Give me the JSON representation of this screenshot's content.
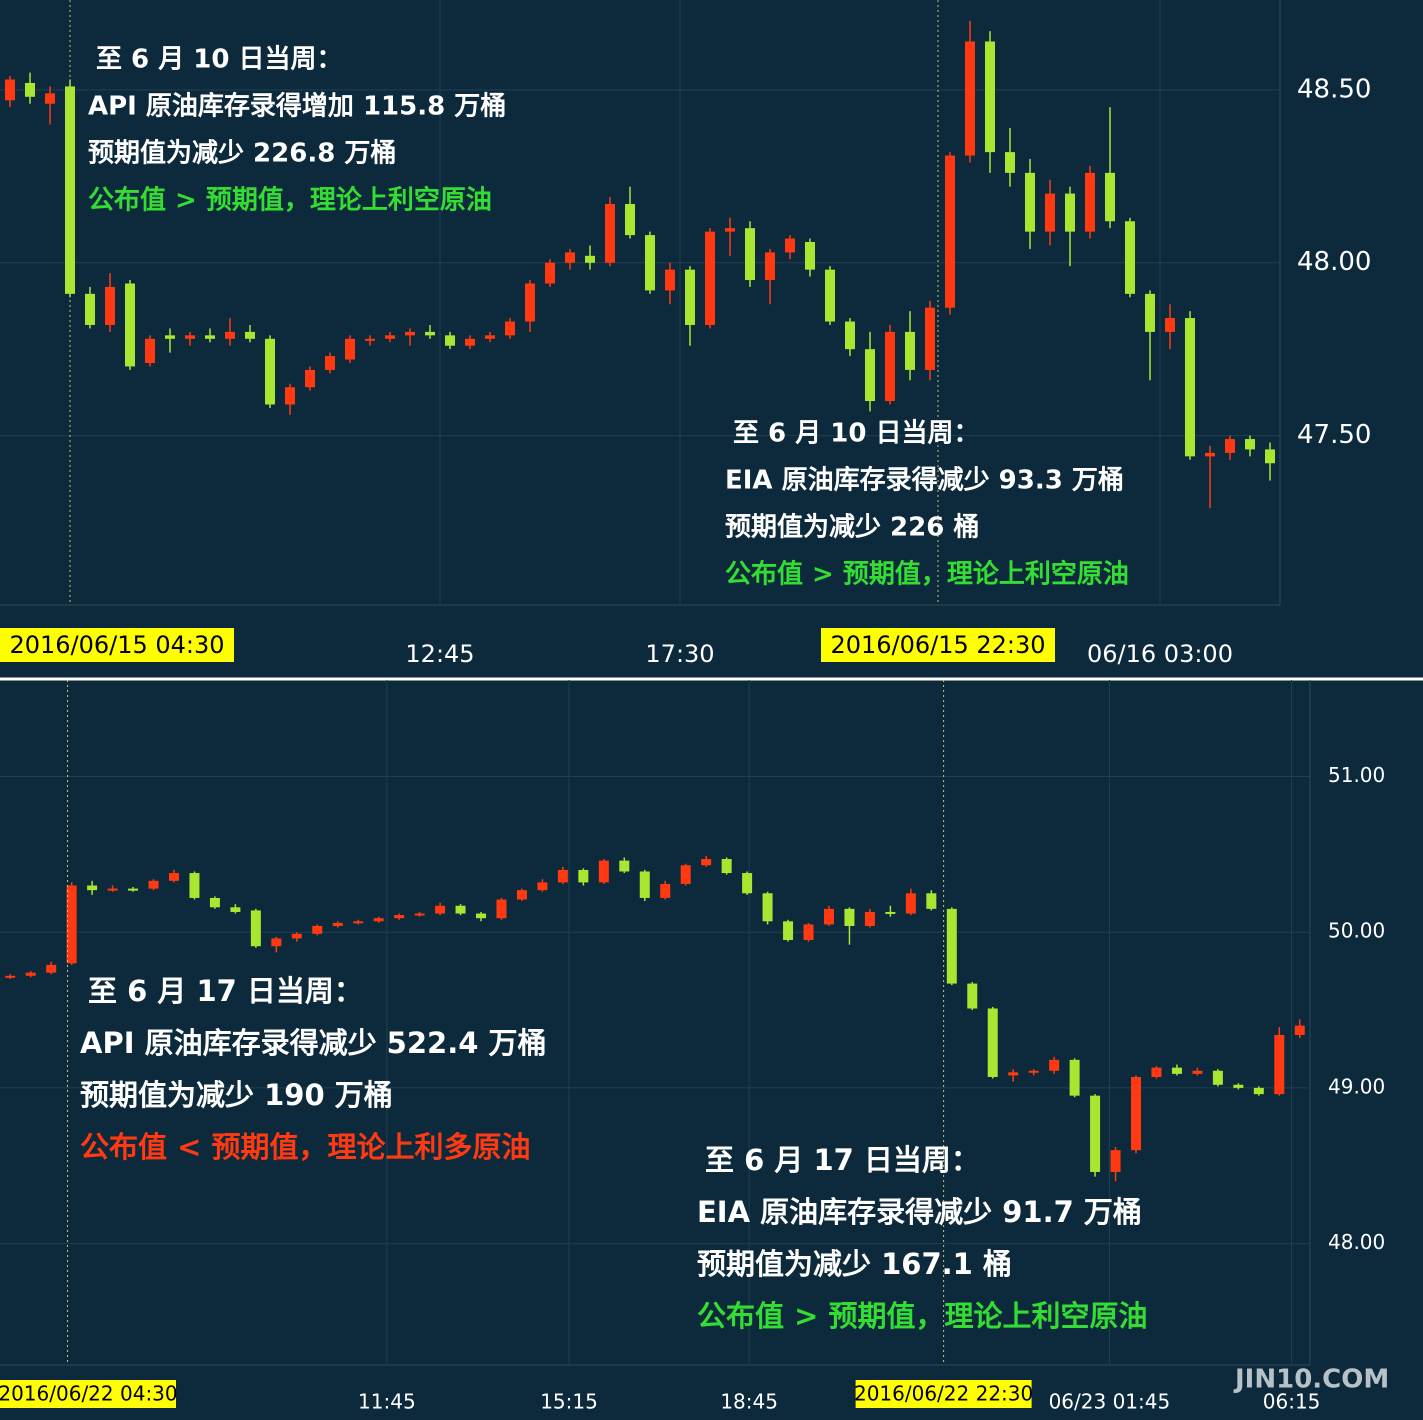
{
  "chart_data": [
    {
      "type": "candlestick",
      "ohlc": [
        [
          48.47,
          48.54,
          48.45,
          48.53
        ],
        [
          48.52,
          48.55,
          48.46,
          48.48
        ],
        [
          48.46,
          48.51,
          48.4,
          48.49
        ],
        [
          48.51,
          48.53,
          47.9,
          47.91
        ],
        [
          47.91,
          47.93,
          47.81,
          47.82
        ],
        [
          47.82,
          47.97,
          47.8,
          47.93
        ],
        [
          47.94,
          47.95,
          47.69,
          47.7
        ],
        [
          47.71,
          47.79,
          47.7,
          47.78
        ],
        [
          47.79,
          47.81,
          47.74,
          47.78
        ],
        [
          47.78,
          47.8,
          47.76,
          47.79
        ],
        [
          47.79,
          47.81,
          47.77,
          47.78
        ],
        [
          47.78,
          47.84,
          47.76,
          47.8
        ],
        [
          47.8,
          47.82,
          47.77,
          47.78
        ],
        [
          47.78,
          47.79,
          47.58,
          47.59
        ],
        [
          47.59,
          47.65,
          47.56,
          47.64
        ],
        [
          47.64,
          47.7,
          47.63,
          47.69
        ],
        [
          47.69,
          47.74,
          47.68,
          47.73
        ],
        [
          47.72,
          47.79,
          47.71,
          47.78
        ],
        [
          47.78,
          47.79,
          47.76,
          47.78
        ],
        [
          47.78,
          47.8,
          47.77,
          47.79
        ],
        [
          47.79,
          47.81,
          47.76,
          47.8
        ],
        [
          47.8,
          47.82,
          47.78,
          47.79
        ],
        [
          47.79,
          47.8,
          47.75,
          47.76
        ],
        [
          47.76,
          47.79,
          47.75,
          47.78
        ],
        [
          47.78,
          47.8,
          47.77,
          47.79
        ],
        [
          47.79,
          47.84,
          47.78,
          47.83
        ],
        [
          47.83,
          47.95,
          47.8,
          47.94
        ],
        [
          47.94,
          48.01,
          47.93,
          48.0
        ],
        [
          48.0,
          48.04,
          47.98,
          48.03
        ],
        [
          48.02,
          48.05,
          47.98,
          48.0
        ],
        [
          48.0,
          48.19,
          47.99,
          48.17
        ],
        [
          48.17,
          48.22,
          48.07,
          48.08
        ],
        [
          48.08,
          48.09,
          47.91,
          47.92
        ],
        [
          47.92,
          48.0,
          47.88,
          47.98
        ],
        [
          47.98,
          47.99,
          47.76,
          47.82
        ],
        [
          47.82,
          48.1,
          47.81,
          48.09
        ],
        [
          48.09,
          48.13,
          48.02,
          48.1
        ],
        [
          48.1,
          48.12,
          47.93,
          47.95
        ],
        [
          47.95,
          48.04,
          47.88,
          48.03
        ],
        [
          48.03,
          48.08,
          48.01,
          48.07
        ],
        [
          48.06,
          48.07,
          47.96,
          47.98
        ],
        [
          47.98,
          47.99,
          47.82,
          47.83
        ],
        [
          47.83,
          47.84,
          47.73,
          47.75
        ],
        [
          47.75,
          47.8,
          47.57,
          47.6
        ],
        [
          47.6,
          47.82,
          47.59,
          47.8
        ],
        [
          47.8,
          47.86,
          47.66,
          47.69
        ],
        [
          47.69,
          47.89,
          47.66,
          47.87
        ],
        [
          47.87,
          48.32,
          47.85,
          48.31
        ],
        [
          48.31,
          48.7,
          48.29,
          48.64
        ],
        [
          48.64,
          48.67,
          48.26,
          48.32
        ],
        [
          48.32,
          48.39,
          48.22,
          48.26
        ],
        [
          48.26,
          48.3,
          48.04,
          48.09
        ],
        [
          48.09,
          48.24,
          48.05,
          48.2
        ],
        [
          48.2,
          48.22,
          47.99,
          48.09
        ],
        [
          48.09,
          48.28,
          48.07,
          48.26
        ],
        [
          48.26,
          48.45,
          48.1,
          48.12
        ],
        [
          48.12,
          48.13,
          47.9,
          47.91
        ],
        [
          47.91,
          47.92,
          47.66,
          47.8
        ],
        [
          47.8,
          47.88,
          47.75,
          47.84
        ],
        [
          47.84,
          47.86,
          47.43,
          47.44
        ],
        [
          47.44,
          47.47,
          47.29,
          47.45
        ],
        [
          47.45,
          47.5,
          47.43,
          47.49
        ],
        [
          47.49,
          47.5,
          47.44,
          47.46
        ],
        [
          47.46,
          47.48,
          47.37,
          47.42
        ]
      ],
      "up_color": "#ff3a12",
      "down_color": "#a8e632",
      "ylim": [
        47.01,
        48.76
      ],
      "yticks": [
        {
          "value": 47.5,
          "label": "47.50"
        },
        {
          "value": 48,
          "label": "48.00"
        },
        {
          "value": 48.5,
          "label": "48.50"
        }
      ],
      "xticks": [
        {
          "value": 21.5,
          "label": "12:45"
        },
        {
          "value": 33.5,
          "label": "17:30"
        },
        {
          "value": 57.5,
          "label": "06/16 03:00"
        }
      ],
      "events": [
        {
          "index": 3,
          "label": "2016/06/15 04:30"
        },
        {
          "index": 46.4,
          "label": "2016/06/15 22:30"
        }
      ],
      "annotations": [
        {
          "lines": [
            {
              "text": "至 6 月 10 日当周：",
              "color": "#ffffff"
            },
            {
              "text": "API 原油库存录得增加 115.8 万桶",
              "color": "#ffffff"
            },
            {
              "text": "预期值为减少 226.8 万桶",
              "color": "#ffffff"
            },
            {
              "text": "公布值 > 预期值，理论上利空原油",
              "color": "#33dd33"
            }
          ]
        },
        {
          "lines": [
            {
              "text": "至 6 月 10 日当周：",
              "color": "#ffffff"
            },
            {
              "text": "EIA 原油库存录得减少 93.3 万桶",
              "color": "#ffffff"
            },
            {
              "text": "预期值为减少 226 桶",
              "color": "#ffffff"
            },
            {
              "text": "公布值 > 预期值，理论上利空原油",
              "color": "#33dd33"
            }
          ]
        }
      ]
    },
    {
      "type": "candlestick",
      "ohlc": [
        [
          49.71,
          49.73,
          49.7,
          49.72
        ],
        [
          49.72,
          49.75,
          49.71,
          49.74
        ],
        [
          49.74,
          49.81,
          49.73,
          49.79
        ],
        [
          49.8,
          50.32,
          49.79,
          50.3
        ],
        [
          50.3,
          50.33,
          50.24,
          50.27
        ],
        [
          50.27,
          50.3,
          50.26,
          50.28
        ],
        [
          50.28,
          50.29,
          50.26,
          50.27
        ],
        [
          50.28,
          50.34,
          50.27,
          50.33
        ],
        [
          50.33,
          50.4,
          50.32,
          50.38
        ],
        [
          50.38,
          50.39,
          50.21,
          50.22
        ],
        [
          50.22,
          50.23,
          50.15,
          50.16
        ],
        [
          50.16,
          50.18,
          50.12,
          50.13
        ],
        [
          50.14,
          50.15,
          49.9,
          49.91
        ],
        [
          49.91,
          49.97,
          49.87,
          49.96
        ],
        [
          49.96,
          50.0,
          49.94,
          49.99
        ],
        [
          49.99,
          50.05,
          49.98,
          50.04
        ],
        [
          50.04,
          50.07,
          50.03,
          50.06
        ],
        [
          50.06,
          50.08,
          50.05,
          50.07
        ],
        [
          50.07,
          50.1,
          50.06,
          50.09
        ],
        [
          50.09,
          50.12,
          50.08,
          50.11
        ],
        [
          50.11,
          50.13,
          50.1,
          50.12
        ],
        [
          50.12,
          50.19,
          50.11,
          50.17
        ],
        [
          50.17,
          50.18,
          50.11,
          50.12
        ],
        [
          50.12,
          50.13,
          50.07,
          50.09
        ],
        [
          50.09,
          50.22,
          50.08,
          50.21
        ],
        [
          50.21,
          50.28,
          50.2,
          50.27
        ],
        [
          50.27,
          50.34,
          50.26,
          50.32
        ],
        [
          50.32,
          50.42,
          50.31,
          50.4
        ],
        [
          50.4,
          50.41,
          50.3,
          50.32
        ],
        [
          50.32,
          50.47,
          50.31,
          50.46
        ],
        [
          50.46,
          50.48,
          50.38,
          50.39
        ],
        [
          50.39,
          50.4,
          50.2,
          50.22
        ],
        [
          50.22,
          50.33,
          50.21,
          50.31
        ],
        [
          50.31,
          50.44,
          50.3,
          50.43
        ],
        [
          50.43,
          50.49,
          50.42,
          50.47
        ],
        [
          50.47,
          50.48,
          50.37,
          50.38
        ],
        [
          50.38,
          50.39,
          50.24,
          50.25
        ],
        [
          50.25,
          50.26,
          50.05,
          50.07
        ],
        [
          50.07,
          50.08,
          49.94,
          49.95
        ],
        [
          49.95,
          50.06,
          49.94,
          50.05
        ],
        [
          50.05,
          50.17,
          50.04,
          50.15
        ],
        [
          50.15,
          50.16,
          49.92,
          50.04
        ],
        [
          50.04,
          50.15,
          50.03,
          50.13
        ],
        [
          50.13,
          50.17,
          50.1,
          50.12
        ],
        [
          50.12,
          50.28,
          50.11,
          50.25
        ],
        [
          50.25,
          50.27,
          50.14,
          50.15
        ],
        [
          50.15,
          50.16,
          49.66,
          49.67
        ],
        [
          49.67,
          49.68,
          49.5,
          49.51
        ],
        [
          49.51,
          49.52,
          49.06,
          49.07
        ],
        [
          49.08,
          49.12,
          49.04,
          49.1
        ],
        [
          49.1,
          49.12,
          49.08,
          49.11
        ],
        [
          49.11,
          49.2,
          49.09,
          49.18
        ],
        [
          49.18,
          49.19,
          48.94,
          48.95
        ],
        [
          48.95,
          48.96,
          48.43,
          48.46
        ],
        [
          48.46,
          48.62,
          48.4,
          48.6
        ],
        [
          48.6,
          49.08,
          48.58,
          49.07
        ],
        [
          49.07,
          49.14,
          49.06,
          49.13
        ],
        [
          49.13,
          49.15,
          49.08,
          49.09
        ],
        [
          49.09,
          49.13,
          49.08,
          49.11
        ],
        [
          49.11,
          49.12,
          49.01,
          49.02
        ],
        [
          49.02,
          49.03,
          48.99,
          49.0
        ],
        [
          49.0,
          49.01,
          48.95,
          48.96
        ],
        [
          48.96,
          49.39,
          48.95,
          49.34
        ],
        [
          49.34,
          49.44,
          49.32,
          49.4
        ]
      ],
      "up_color": "#ff3a12",
      "down_color": "#a8e632",
      "ylim": [
        47.22,
        51.62
      ],
      "yticks": [
        {
          "value": 48,
          "label": "48.00"
        },
        {
          "value": 49,
          "label": "49.00"
        },
        {
          "value": 50,
          "label": "50.00"
        },
        {
          "value": 51,
          "label": "51.00"
        }
      ],
      "xticks": [
        {
          "value": 18.4,
          "label": "11:45"
        },
        {
          "value": 27.3,
          "label": "15:15"
        },
        {
          "value": 36.1,
          "label": "18:45"
        },
        {
          "value": 53.7,
          "label": "06/23 01:45"
        },
        {
          "value": 62.6,
          "label": "06:15"
        }
      ],
      "events": [
        {
          "index": 2.8,
          "label": "2016/06/22 04:30"
        },
        {
          "index": 45.6,
          "label": "2016/06/22 22:30"
        }
      ],
      "annotations": [
        {
          "lines": [
            {
              "text": "至 6 月 17 日当周：",
              "color": "#ffffff"
            },
            {
              "text": "API 原油库存录得减少 522.4 万桶",
              "color": "#ffffff"
            },
            {
              "text": "预期值为减少 190 万桶",
              "color": "#ffffff"
            },
            {
              "text": "公布值 < 预期值，理论上利多原油",
              "color": "#ff3a12"
            }
          ]
        },
        {
          "lines": [
            {
              "text": "至 6 月 17 日当周：",
              "color": "#ffffff"
            },
            {
              "text": "EIA 原油库存录得减少 91.7 万桶",
              "color": "#ffffff"
            },
            {
              "text": "预期值为减少 167.1 桶",
              "color": "#ffffff"
            },
            {
              "text": "公布值 > 预期值，理论上利空原油",
              "color": "#33dd33"
            }
          ]
        }
      ],
      "watermark": "JIN10.COM"
    }
  ]
}
